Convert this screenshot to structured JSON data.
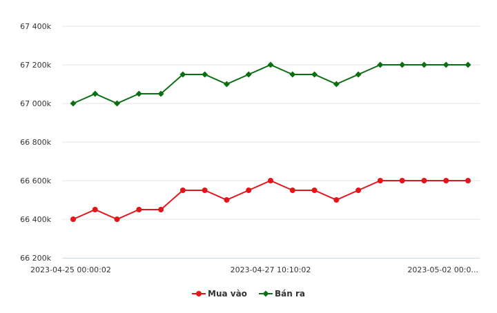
{
  "chart_data": {
    "type": "line",
    "x": [
      "2023-04-25 00:00:02",
      "",
      "",
      "",
      "",
      "",
      "",
      "",
      "",
      "2023-04-27 10:10:02",
      "",
      "",
      "",
      "",
      "",
      "",
      "",
      "",
      ""
    ],
    "x_tick_labels": [
      "2023-04-25 00:00:02",
      "2023-04-27 10:10:02",
      "2023-05-02 00:0..."
    ],
    "y_tick_labels": [
      "66 200k",
      "66 400k",
      "66 600k",
      "66 800k",
      "67 000k",
      "67 200k",
      "67 400k"
    ],
    "ylim": [
      66200,
      67400
    ],
    "grid": true,
    "legend": "bottom-center",
    "series": [
      {
        "name": "Mua vào",
        "color": "#e3151a",
        "marker": "circle",
        "values": [
          66400,
          66450,
          66400,
          66450,
          66450,
          66550,
          66550,
          66500,
          66550,
          66600,
          66550,
          66550,
          66500,
          66550,
          66600,
          66600,
          66600,
          66600,
          66600
        ]
      },
      {
        "name": "Bán ra",
        "color": "#0a6e12",
        "marker": "diamond",
        "values": [
          67000,
          67050,
          67000,
          67050,
          67050,
          67150,
          67150,
          67100,
          67150,
          67200,
          67150,
          67150,
          67100,
          67150,
          67200,
          67200,
          67200,
          67200,
          67200
        ]
      }
    ]
  }
}
